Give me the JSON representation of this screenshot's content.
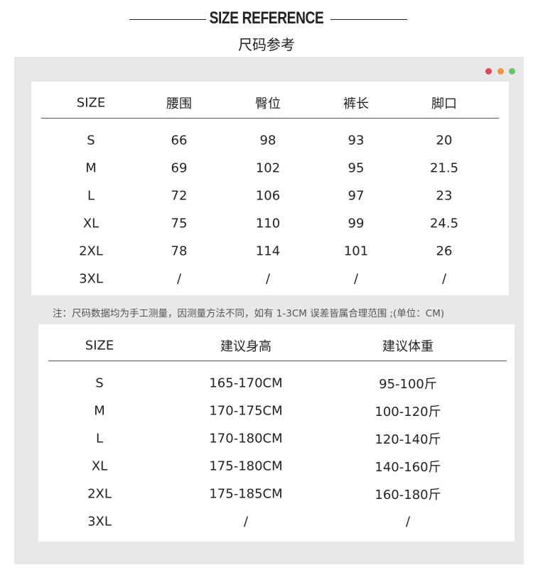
{
  "header": {
    "title": "SIZE REFERENCE",
    "subtitle": "尺码参考"
  },
  "window_dots": [
    "#e8434f",
    "#f0923f",
    "#6cc46a"
  ],
  "table1": {
    "headers": [
      "SIZE",
      "腰围",
      "臀位",
      "裤长",
      "脚口"
    ],
    "rows": [
      [
        "S",
        "66",
        "98",
        "93",
        "20"
      ],
      [
        "M",
        "69",
        "102",
        "95",
        "21.5"
      ],
      [
        "L",
        "72",
        "106",
        "97",
        "23"
      ],
      [
        "XL",
        "75",
        "110",
        "99",
        "24.5"
      ],
      [
        "2XL",
        "78",
        "114",
        "101",
        "26"
      ],
      [
        "3XL",
        "/",
        "/",
        "/",
        "/"
      ]
    ]
  },
  "note": "注：尺码数据均为手工测量，因测量方法不同，如有 1-3CM 误差皆属合理范围 ;(单位：CM)",
  "table2": {
    "headers": [
      "SIZE",
      "建议身高",
      "建议体重"
    ],
    "rows": [
      [
        "S",
        "165-170CM",
        "95-100斤"
      ],
      [
        "M",
        "170-175CM",
        "100-120斤"
      ],
      [
        "L",
        "170-180CM",
        "120-140斤"
      ],
      [
        "XL",
        "175-180CM",
        "140-160斤"
      ],
      [
        "2XL",
        "175-185CM",
        "160-180斤"
      ],
      [
        "3XL",
        "/",
        "/"
      ]
    ]
  }
}
